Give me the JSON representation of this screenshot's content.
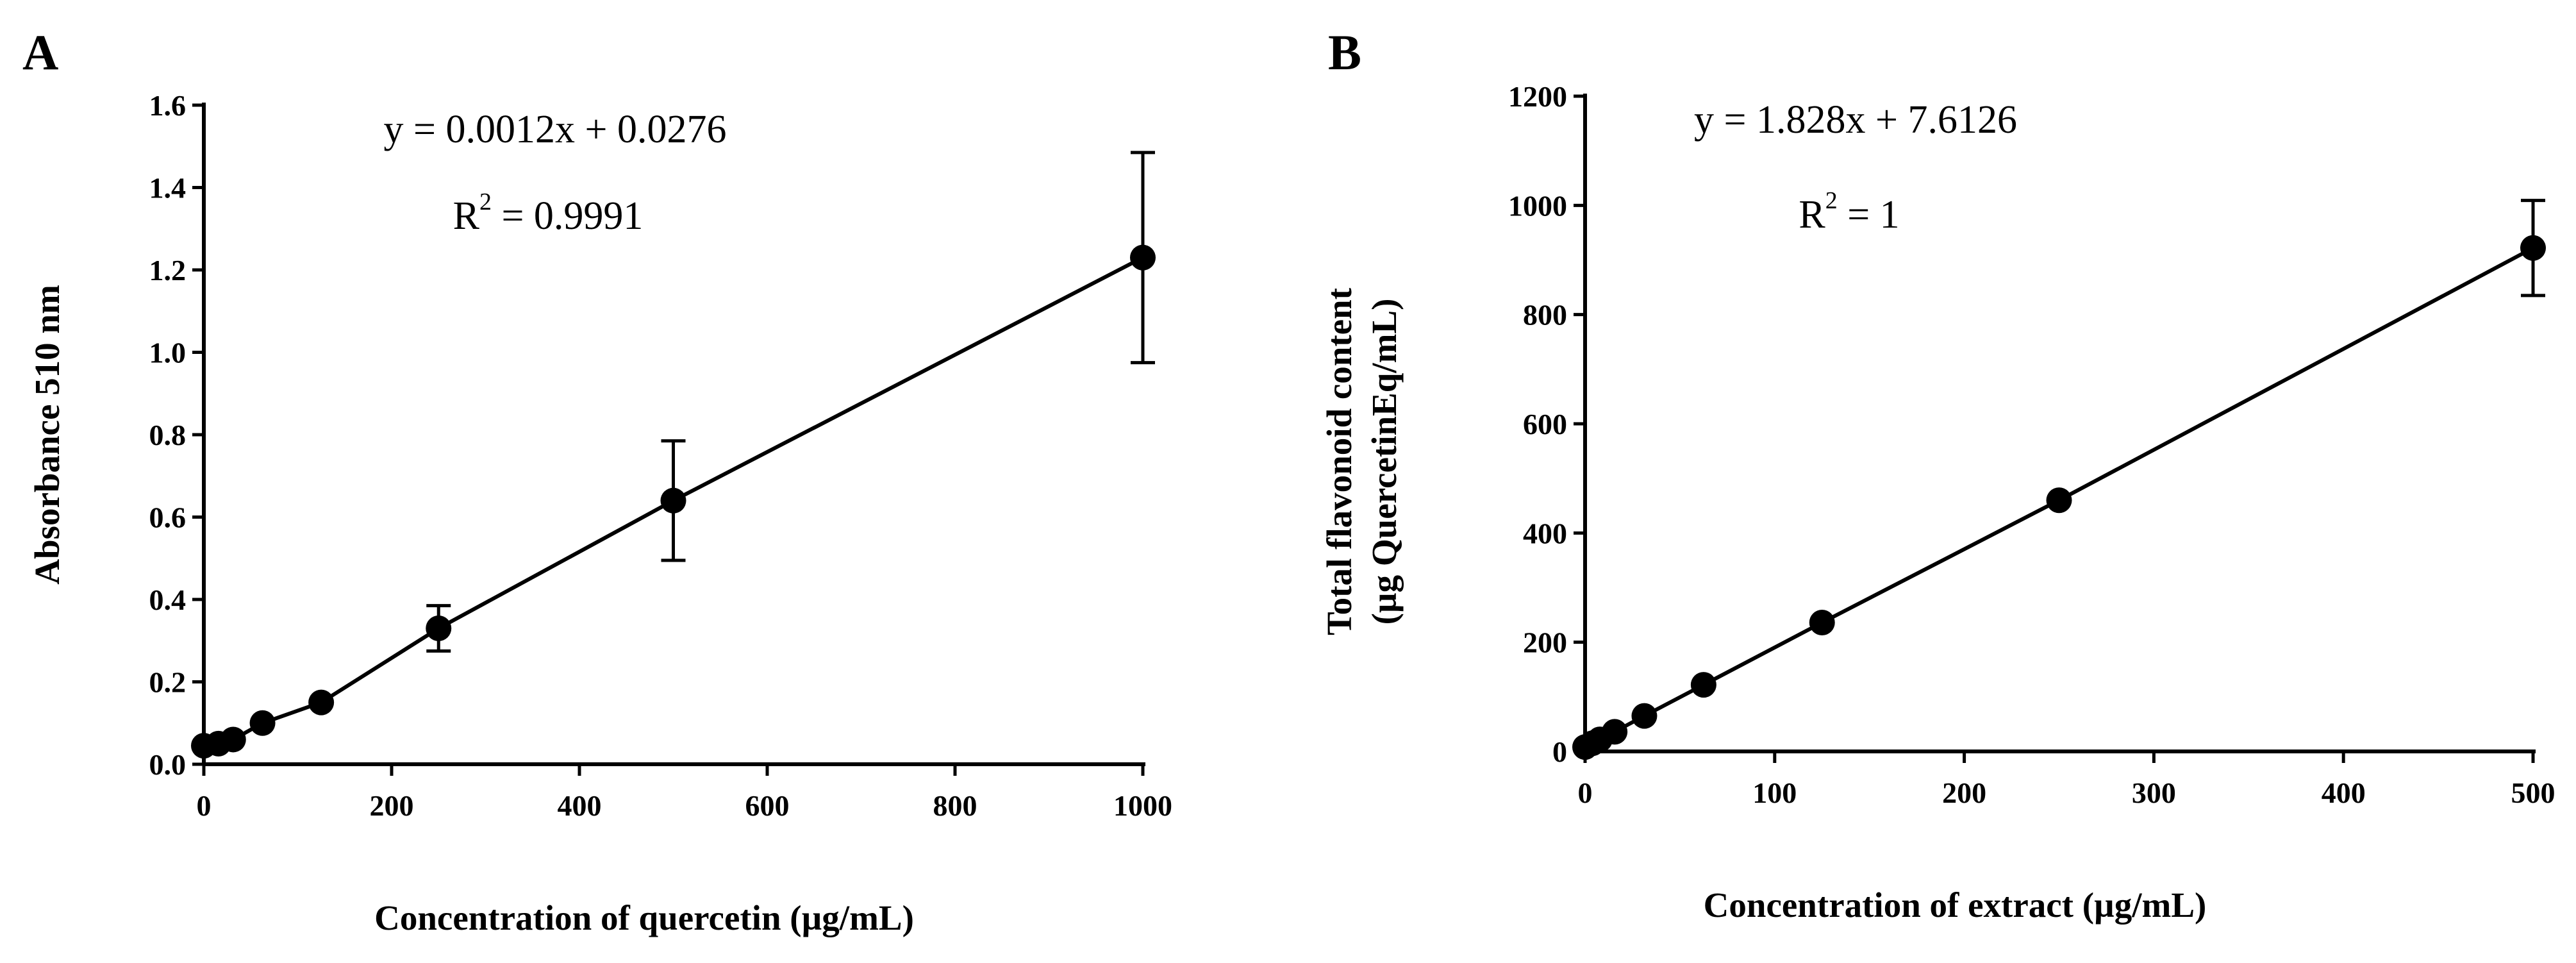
{
  "chart_data": [
    {
      "type": "scatter",
      "panel_label": "A",
      "xlabel": "Concentration of quercetin (µg/mL)",
      "ylabel": "Absorbance 510 nm",
      "xlim": [
        0,
        1000
      ],
      "ylim": [
        0.0,
        1.6
      ],
      "x_ticks": [
        0,
        200,
        400,
        600,
        800,
        1000
      ],
      "x_tick_labels": [
        "0",
        "200",
        "400",
        "600",
        "800",
        "1000"
      ],
      "y_ticks": [
        0.0,
        0.2,
        0.4,
        0.6,
        0.8,
        1.0,
        1.2,
        1.4,
        1.6
      ],
      "y_tick_labels": [
        "0.0",
        "0.2",
        "0.4",
        "0.6",
        "0.8",
        "1.0",
        "1.2",
        "1.4",
        "1.6"
      ],
      "series": [
        {
          "name": "quercetin",
          "connected": true,
          "points": [
            {
              "x": 0,
              "y": 0.045,
              "err": 0.0
            },
            {
              "x": 15.6,
              "y": 0.05,
              "err": 0.0
            },
            {
              "x": 31.25,
              "y": 0.06,
              "err": 0.0
            },
            {
              "x": 62.5,
              "y": 0.1,
              "err": 0.0
            },
            {
              "x": 125,
              "y": 0.15,
              "err": 0.0
            },
            {
              "x": 250,
              "y": 0.33,
              "err": 0.055
            },
            {
              "x": 500,
              "y": 0.64,
              "err": 0.145
            },
            {
              "x": 1000,
              "y": 1.23,
              "err": 0.255
            }
          ]
        }
      ],
      "annotations": {
        "equation": "y = 0.0012x + 0.0276",
        "r2_prefix": "R",
        "r2_exponent": "2",
        "r2_value": " = 0.9991"
      }
    },
    {
      "type": "scatter",
      "panel_label": "B",
      "xlabel": "Concentration of extract (µg/mL)",
      "ylabel_line1": "Total flavonoid content",
      "ylabel_line2": "(µg QuercetinEq/mL)",
      "xlim": [
        0,
        500
      ],
      "ylim": [
        0,
        1200
      ],
      "x_ticks": [
        0,
        100,
        200,
        300,
        400,
        500
      ],
      "x_tick_labels": [
        "0",
        "100",
        "200",
        "300",
        "400",
        "500"
      ],
      "y_ticks": [
        0,
        200,
        400,
        600,
        800,
        1000,
        1200
      ],
      "y_tick_labels": [
        "0",
        "200",
        "400",
        "600",
        "800",
        "1000",
        "1200"
      ],
      "series": [
        {
          "name": "extract",
          "connected": true,
          "points": [
            {
              "x": 0,
              "y": 8,
              "err": 0
            },
            {
              "x": 3.9,
              "y": 15,
              "err": 0
            },
            {
              "x": 7.8,
              "y": 22,
              "err": 0
            },
            {
              "x": 15.6,
              "y": 36,
              "err": 0
            },
            {
              "x": 31.25,
              "y": 65,
              "err": 0
            },
            {
              "x": 62.5,
              "y": 122,
              "err": 0
            },
            {
              "x": 125,
              "y": 236,
              "err": 0
            },
            {
              "x": 250,
              "y": 460,
              "err": 0
            },
            {
              "x": 500,
              "y": 922,
              "err": 87
            }
          ]
        }
      ],
      "annotations": {
        "equation": "y = 1.828x + 7.6126",
        "r2_prefix": "R",
        "r2_exponent": "2",
        "r2_value": " = 1"
      }
    }
  ]
}
